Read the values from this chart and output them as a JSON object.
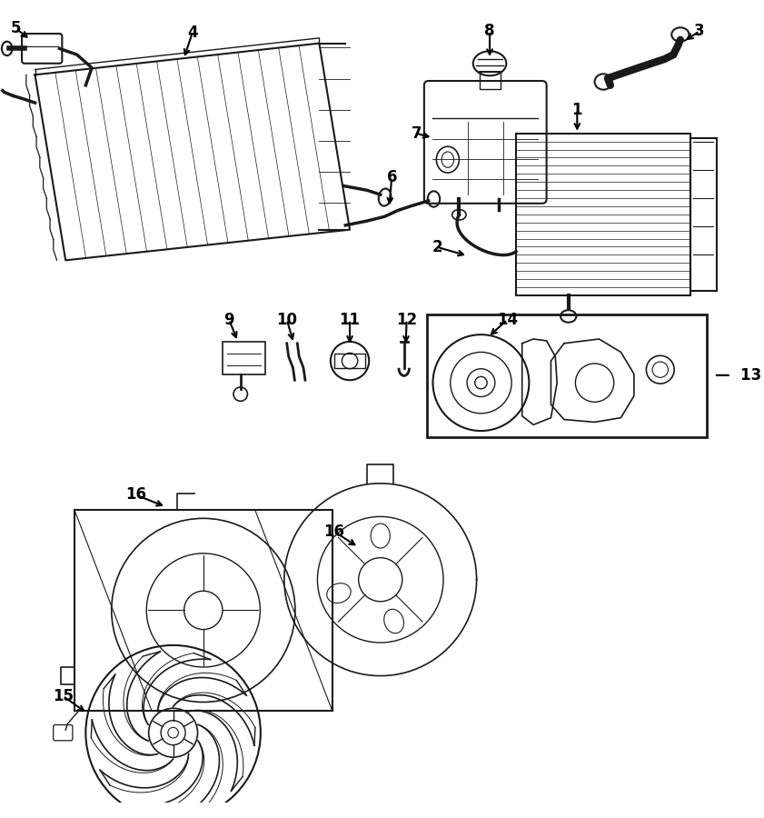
{
  "bg_color": "#ffffff",
  "line_color": "#1a1a1a",
  "label_color": "#000000",
  "fig_width": 8.41,
  "fig_height": 9.0,
  "dpi": 100
}
